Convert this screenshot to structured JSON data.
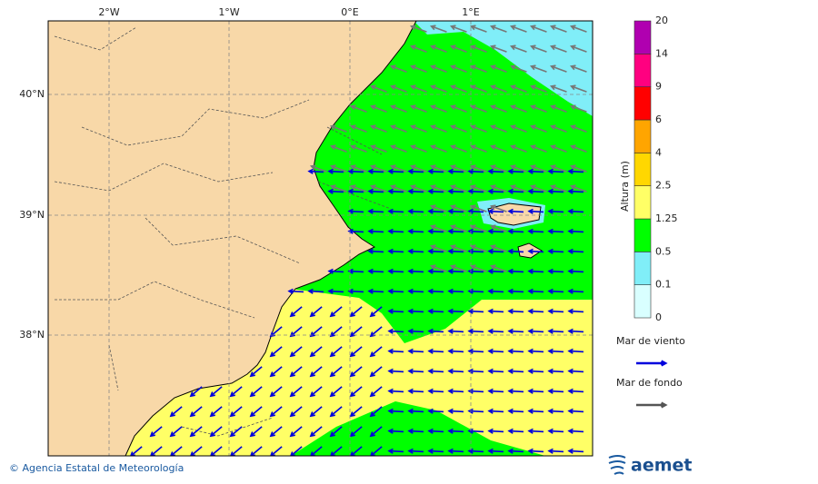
{
  "map": {
    "longitude_labels": [
      "2°W",
      "1°W",
      "0°E",
      "1°E"
    ],
    "latitude_labels": [
      "40°N",
      "39°N",
      "38°N"
    ]
  },
  "colorbar": {
    "title": "Altura (m)",
    "levels": [
      0,
      0.1,
      0.5,
      1.25,
      2.5,
      4,
      6,
      9,
      14,
      20
    ],
    "colors": [
      "#d9ffff",
      "#80eef8",
      "#00ff00",
      "#ffff66",
      "#ffd700",
      "#ffa500",
      "#ff0000",
      "#ff0080",
      "#b000b0"
    ]
  },
  "legend": [
    {
      "label": "Mar de viento",
      "color": "#0000dd"
    },
    {
      "label": "Mar de fondo",
      "color": "#555555"
    }
  ],
  "footer": {
    "credit": "© Agencia Estatal de Meteorología",
    "logo": "aemet"
  }
}
